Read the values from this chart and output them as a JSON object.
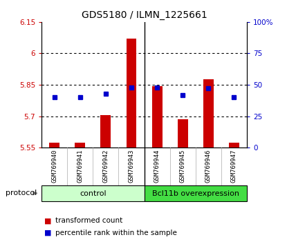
{
  "title": "GDS5180 / ILMN_1225661",
  "samples": [
    "GSM769940",
    "GSM769941",
    "GSM769942",
    "GSM769943",
    "GSM769944",
    "GSM769945",
    "GSM769946",
    "GSM769947"
  ],
  "transformed_counts": [
    5.575,
    5.575,
    5.705,
    6.07,
    5.845,
    5.685,
    5.875,
    5.575
  ],
  "percentile_ranks": [
    40,
    40,
    43,
    48,
    48,
    42,
    47,
    40
  ],
  "ylim": [
    5.55,
    6.15
  ],
  "yticks": [
    5.55,
    5.7,
    5.85,
    6.0,
    6.15
  ],
  "ytick_labels": [
    "5.55",
    "5.7",
    "5.85",
    "6",
    "6.15"
  ],
  "y2lim": [
    0,
    100
  ],
  "y2ticks": [
    0,
    25,
    50,
    75,
    100
  ],
  "y2tick_labels": [
    "0",
    "25",
    "50",
    "75",
    "100%"
  ],
  "bar_color": "#cc0000",
  "dot_color": "#0000cc",
  "bar_bottom": 5.55,
  "bar_width": 0.4,
  "groups": [
    {
      "label": "control",
      "start": 0,
      "end": 3,
      "color": "#bbffbb"
    },
    {
      "label": "Bcl11b overexpression",
      "start": 4,
      "end": 7,
      "color": "#44dd44"
    }
  ],
  "group_row_color": "#cccccc",
  "protocol_label": "protocol",
  "legend_items": [
    {
      "color": "#cc0000",
      "label": "transformed count"
    },
    {
      "color": "#0000cc",
      "label": "percentile rank within the sample"
    }
  ],
  "grid_color": "#000000",
  "ax_background": "#ffffff",
  "tick_label_color_left": "#cc0000",
  "tick_label_color_right": "#0000cc",
  "ctrl_light": "#ccffcc",
  "bcl_dark": "#44dd44"
}
